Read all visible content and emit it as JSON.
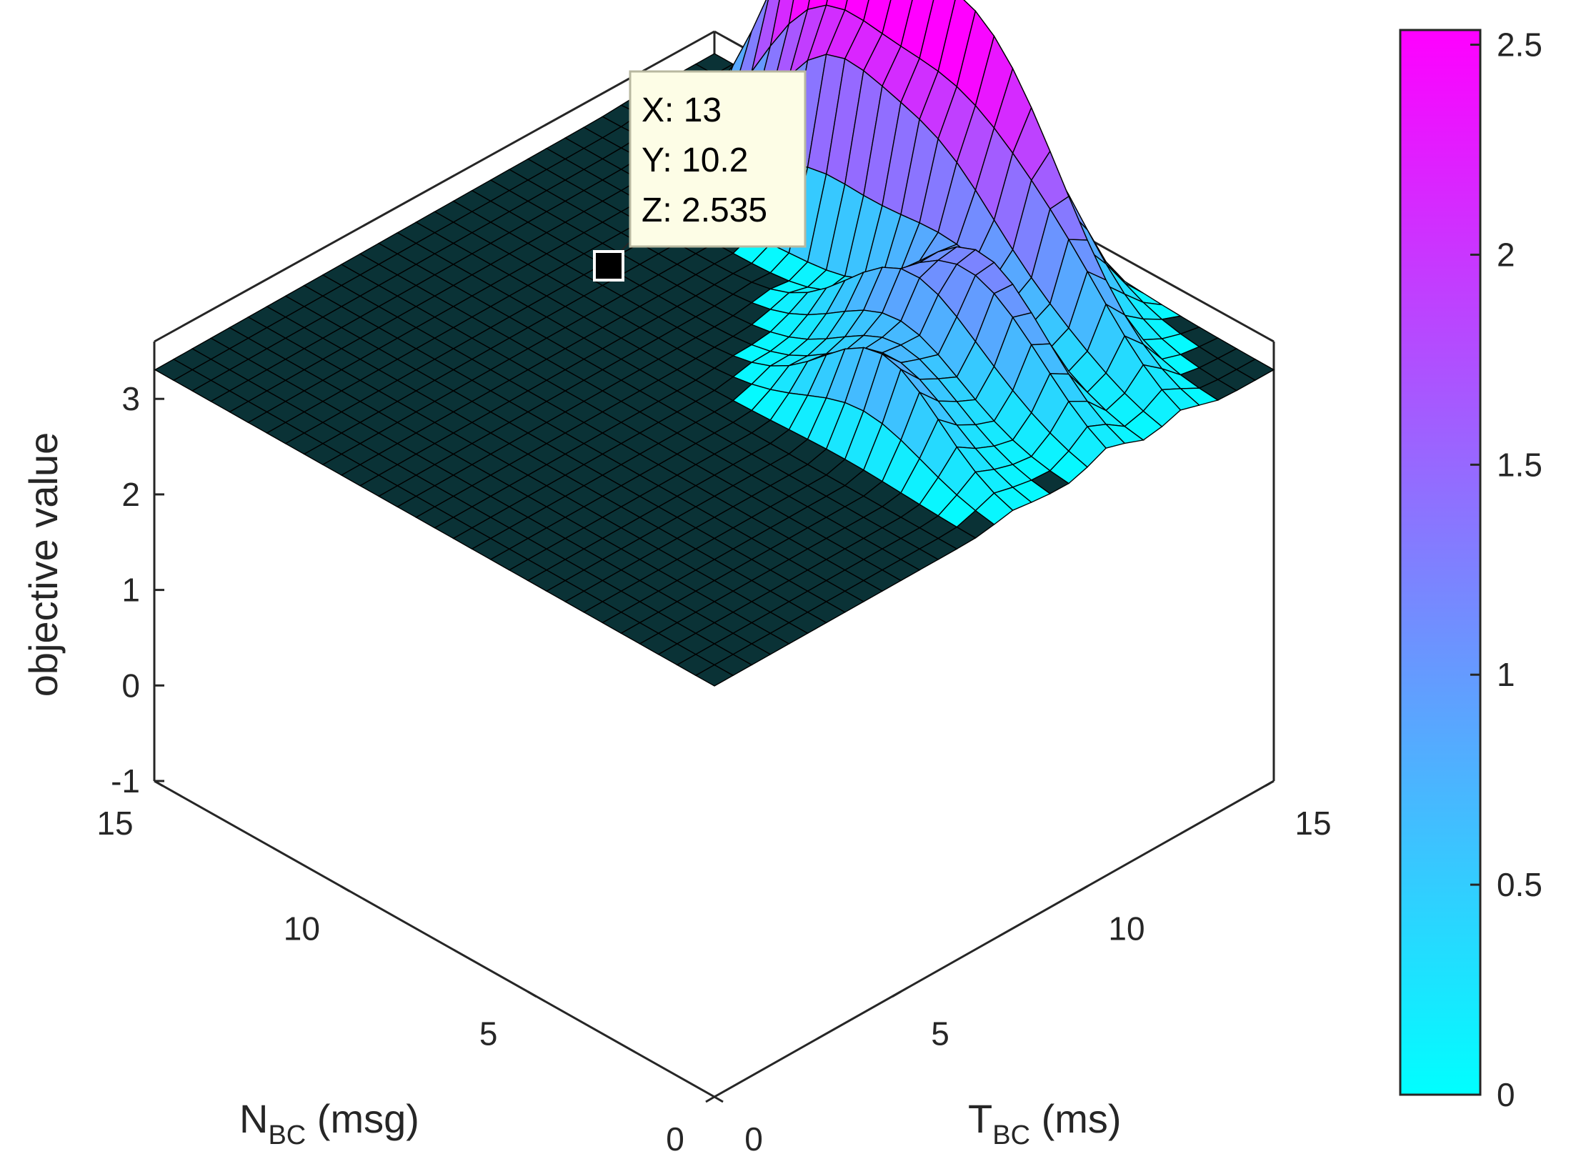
{
  "chart_data": {
    "type": "surface",
    "xlabel": {
      "main": "T",
      "sub": "BC",
      "unit": " (ms)"
    },
    "ylabel": {
      "main": "N",
      "sub": "BC",
      "unit": " (msg)"
    },
    "zlabel": "objective value",
    "xlim": [
      0,
      15
    ],
    "ylim": [
      0,
      15
    ],
    "zlim": [
      -1,
      3.6
    ],
    "x_ticks": [
      "0",
      "5",
      "10",
      "15"
    ],
    "y_ticks": [
      "0",
      "5",
      "10",
      "15"
    ],
    "z_ticks": [
      "-1",
      "0",
      "1",
      "2",
      "3"
    ],
    "colorbar": {
      "ticks": [
        "0",
        "0.5",
        "1",
        "1.5",
        "2",
        "2.5"
      ],
      "range": [
        0,
        2.535
      ],
      "colormap": [
        "#00ffff",
        "#ff00ff"
      ]
    },
    "datatip": {
      "x": 13,
      "y": 10.2,
      "z": 2.535,
      "lines": [
        "X: 13",
        "Y: 10.2",
        "Z: 2.535"
      ]
    },
    "peaks": [
      {
        "x": 13,
        "y": 10.2,
        "z": 2.535
      },
      {
        "x": 13,
        "y": 7.2,
        "z": 1.8
      },
      {
        "x": 13,
        "y": 5.0,
        "z": 1.5
      },
      {
        "x": 12,
        "y": 6.0,
        "z": 1.25
      },
      {
        "x": 11,
        "y": 4.0,
        "z": 1.0
      },
      {
        "x": 12.5,
        "y": 3.0,
        "z": 0.8
      },
      {
        "x": 14,
        "y": 5.5,
        "z": 1.1
      },
      {
        "x": 10,
        "y": 5.0,
        "z": 0.9
      },
      {
        "x": 9,
        "y": 4.0,
        "z": 0.6
      },
      {
        "x": 8,
        "y": 3.5,
        "z": 0.9
      },
      {
        "x": 10.5,
        "y": 2.5,
        "z": 0.55
      },
      {
        "x": 12,
        "y": 9.0,
        "z": 1.6
      },
      {
        "x": 14,
        "y": 8.5,
        "z": 1.3
      }
    ]
  }
}
